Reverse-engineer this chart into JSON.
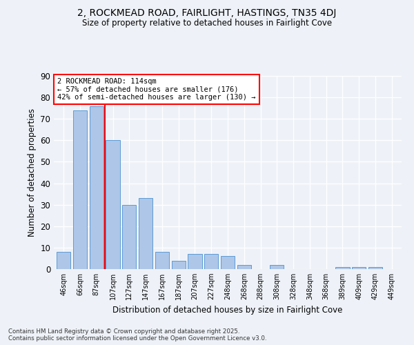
{
  "title1": "2, ROCKMEAD ROAD, FAIRLIGHT, HASTINGS, TN35 4DJ",
  "title2": "Size of property relative to detached houses in Fairlight Cove",
  "xlabel": "Distribution of detached houses by size in Fairlight Cove",
  "ylabel": "Number of detached properties",
  "categories": [
    "46sqm",
    "66sqm",
    "87sqm",
    "107sqm",
    "127sqm",
    "147sqm",
    "167sqm",
    "187sqm",
    "207sqm",
    "227sqm",
    "248sqm",
    "268sqm",
    "288sqm",
    "308sqm",
    "328sqm",
    "348sqm",
    "368sqm",
    "389sqm",
    "409sqm",
    "429sqm",
    "449sqm"
  ],
  "values": [
    8,
    74,
    76,
    60,
    30,
    33,
    8,
    4,
    7,
    7,
    6,
    2,
    0,
    2,
    0,
    0,
    0,
    1,
    1,
    1,
    0
  ],
  "bar_color": "#aec6e8",
  "bar_edge_color": "#5b9bd5",
  "vline_x": 2.5,
  "vline_color": "red",
  "annotation_title": "2 ROCKMEAD ROAD: 114sqm",
  "annotation_line2": "← 57% of detached houses are smaller (176)",
  "annotation_line3": "42% of semi-detached houses are larger (130) →",
  "annotation_box_color": "white",
  "annotation_box_edge": "red",
  "ylim": [
    0,
    90
  ],
  "yticks": [
    0,
    10,
    20,
    30,
    40,
    50,
    60,
    70,
    80,
    90
  ],
  "background_color": "#eef2f8",
  "footer1": "Contains HM Land Registry data © Crown copyright and database right 2025.",
  "footer2": "Contains public sector information licensed under the Open Government Licence v3.0."
}
